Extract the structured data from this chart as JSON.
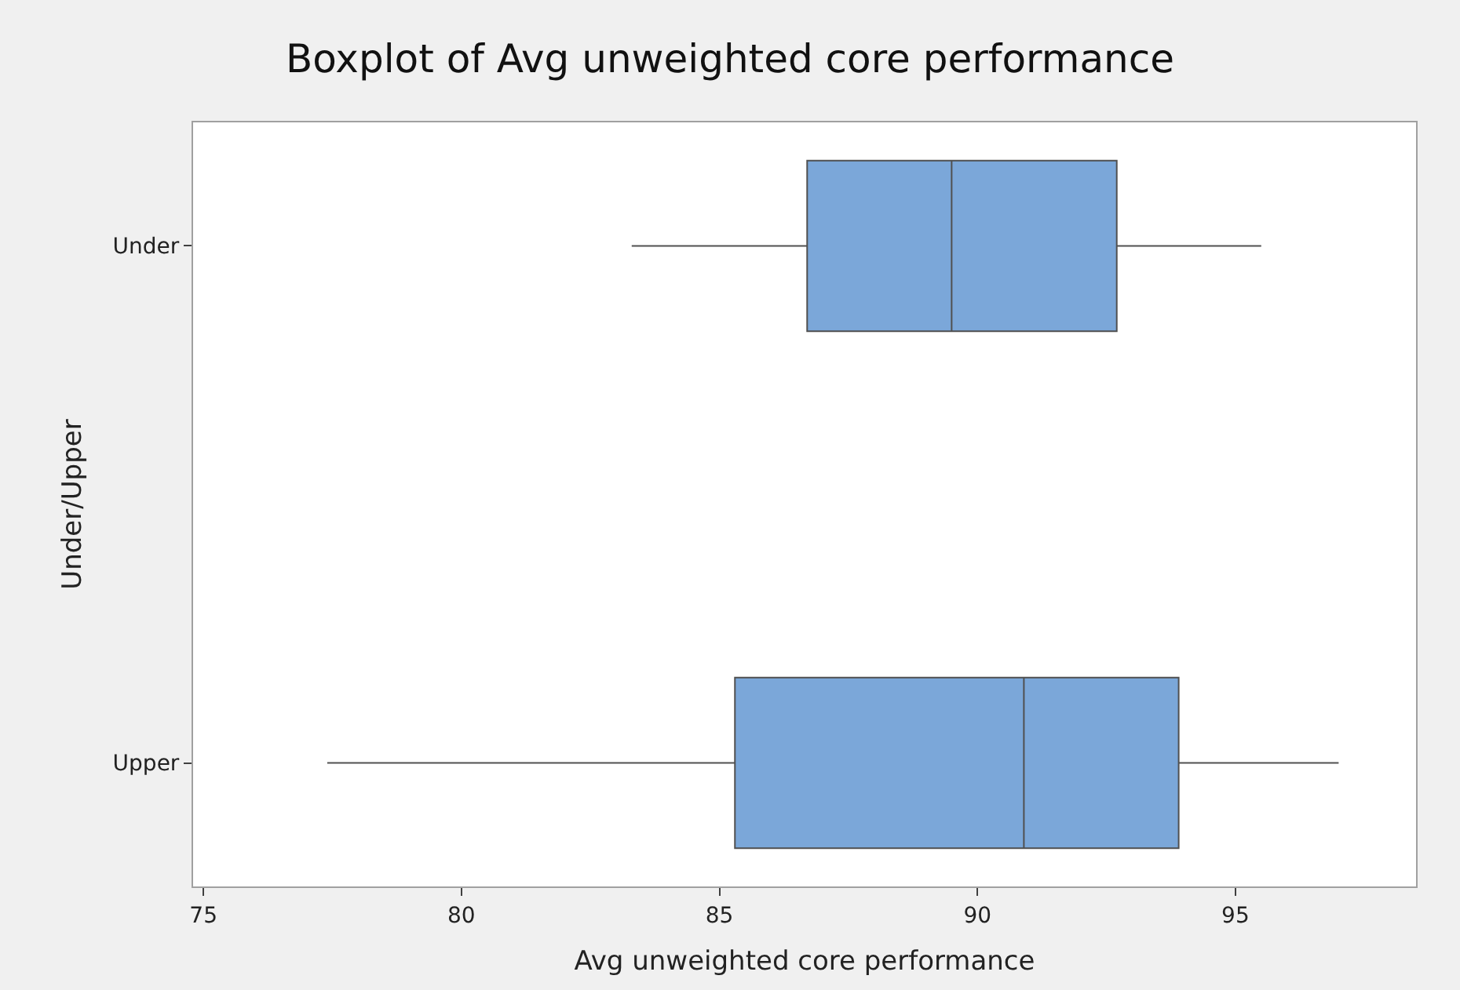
{
  "chart_data": {
    "type": "box",
    "orientation": "horizontal",
    "title": "Boxplot of Avg unweighted core performance",
    "xlabel": "Avg unweighted core performance",
    "ylabel": "Under/Upper",
    "categories": [
      "Under",
      "Upper"
    ],
    "boxes": [
      {
        "low": 83.3,
        "q1": 86.7,
        "median": 89.5,
        "q3": 92.7,
        "high": 95.5
      },
      {
        "low": 77.4,
        "q1": 85.3,
        "median": 90.9,
        "q3": 93.9,
        "high": 97.0
      }
    ],
    "color": "#7ba7d9",
    "xlim": [
      74.8,
      98.5
    ],
    "xticks": [
      75,
      80,
      85,
      90,
      95
    ]
  }
}
